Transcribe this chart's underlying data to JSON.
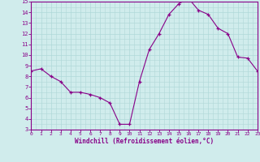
{
  "hours": [
    0,
    1,
    2,
    3,
    4,
    5,
    6,
    7,
    8,
    9,
    10,
    11,
    12,
    13,
    14,
    15,
    16,
    17,
    18,
    19,
    20,
    21,
    22,
    23
  ],
  "values": [
    8.5,
    8.7,
    8.0,
    7.5,
    6.5,
    6.5,
    6.3,
    6.0,
    5.5,
    3.5,
    3.5,
    7.5,
    10.5,
    12.0,
    13.8,
    14.8,
    15.3,
    14.2,
    13.8,
    12.5,
    12.0,
    9.8,
    9.7,
    8.5
  ],
  "ylim": [
    3,
    15
  ],
  "yticks": [
    3,
    4,
    5,
    6,
    7,
    8,
    9,
    10,
    11,
    12,
    13,
    14,
    15
  ],
  "xlim": [
    0,
    23
  ],
  "xticks": [
    0,
    1,
    2,
    3,
    4,
    5,
    6,
    7,
    8,
    9,
    10,
    11,
    12,
    13,
    14,
    15,
    16,
    17,
    18,
    19,
    20,
    21,
    22,
    23
  ],
  "xlabel": "Windchill (Refroidissement éolien,°C)",
  "line_color": "#880088",
  "marker_color": "#880088",
  "bg_color": "#d0ecec",
  "grid_major_color": "#b0d8d8",
  "grid_minor_color": "#c0e4e4",
  "axis_color": "#880088",
  "label_color": "#880088",
  "spine_color": "#880088"
}
